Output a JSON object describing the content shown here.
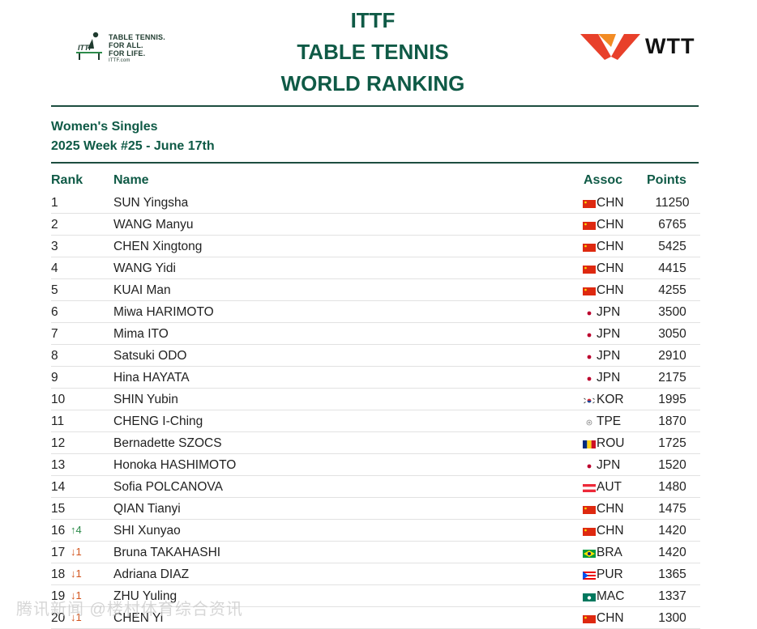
{
  "header": {
    "ittf_logo": {
      "icon": "ittf-table-tennis-logo-icon",
      "line1": "TABLE TENNIS.",
      "line2": "FOR ALL.",
      "line3": "FOR LIFE.",
      "line4": "ITTF.com"
    },
    "title_line1": "ITTF",
    "title_line2": "TABLE TENNIS",
    "title_line3": "WORLD RANKING",
    "wtt_logo": {
      "icon": "wtt-logo-icon",
      "text": "WTT"
    }
  },
  "ranking": {
    "category": "Women's Singles",
    "week": "2025 Week #25 - June 17th",
    "columns": {
      "rank": "Rank",
      "name": "Name",
      "assoc": "Assoc",
      "points": "Points"
    },
    "rows": [
      {
        "rank": "1",
        "change": "",
        "name": "SUN Yingsha",
        "flag": "chn-flag-icon",
        "assoc": "CHN",
        "points": "11250"
      },
      {
        "rank": "2",
        "change": "",
        "name": "WANG Manyu",
        "flag": "chn-flag-icon",
        "assoc": "CHN",
        "points": "6765"
      },
      {
        "rank": "3",
        "change": "",
        "name": "CHEN Xingtong",
        "flag": "chn-flag-icon",
        "assoc": "CHN",
        "points": "5425"
      },
      {
        "rank": "4",
        "change": "",
        "name": "WANG Yidi",
        "flag": "chn-flag-icon",
        "assoc": "CHN",
        "points": "4415"
      },
      {
        "rank": "5",
        "change": "",
        "name": "KUAI Man",
        "flag": "chn-flag-icon",
        "assoc": "CHN",
        "points": "4255"
      },
      {
        "rank": "6",
        "change": "",
        "name": "Miwa HARIMOTO",
        "flag": "jpn-flag-icon",
        "assoc": "JPN",
        "points": "3500"
      },
      {
        "rank": "7",
        "change": "",
        "name": "Mima ITO",
        "flag": "jpn-flag-icon",
        "assoc": "JPN",
        "points": "3050"
      },
      {
        "rank": "8",
        "change": "",
        "name": "Satsuki ODO",
        "flag": "jpn-flag-icon",
        "assoc": "JPN",
        "points": "2910"
      },
      {
        "rank": "9",
        "change": "",
        "name": "Hina HAYATA",
        "flag": "jpn-flag-icon",
        "assoc": "JPN",
        "points": "2175"
      },
      {
        "rank": "10",
        "change": "",
        "name": "SHIN Yubin",
        "flag": "kor-flag-icon",
        "assoc": "KOR",
        "points": "1995"
      },
      {
        "rank": "11",
        "change": "",
        "name": "CHENG I-Ching",
        "flag": "tpe-flag-icon",
        "assoc": "TPE",
        "points": "1870"
      },
      {
        "rank": "12",
        "change": "",
        "name": "Bernadette SZOCS",
        "flag": "rou-flag-icon",
        "assoc": "ROU",
        "points": "1725"
      },
      {
        "rank": "13",
        "change": "",
        "name": "Honoka HASHIMOTO",
        "flag": "jpn-flag-icon",
        "assoc": "JPN",
        "points": "1520"
      },
      {
        "rank": "14",
        "change": "",
        "name": "Sofia POLCANOVA",
        "flag": "aut-flag-icon",
        "assoc": "AUT",
        "points": "1480"
      },
      {
        "rank": "15",
        "change": "",
        "name": "QIAN Tianyi",
        "flag": "chn-flag-icon",
        "assoc": "CHN",
        "points": "1475"
      },
      {
        "rank": "16",
        "change": "↑4",
        "dir": "up",
        "name": "SHI Xunyao",
        "flag": "chn-flag-icon",
        "assoc": "CHN",
        "points": "1420"
      },
      {
        "rank": "17",
        "change": "↓1",
        "dir": "down",
        "name": "Bruna TAKAHASHI",
        "flag": "bra-flag-icon",
        "assoc": "BRA",
        "points": "1420"
      },
      {
        "rank": "18",
        "change": "↓1",
        "dir": "down",
        "name": "Adriana DIAZ",
        "flag": "pur-flag-icon",
        "assoc": "PUR",
        "points": "1365"
      },
      {
        "rank": "19",
        "change": "↓1",
        "dir": "down",
        "name": "ZHU Yuling",
        "flag": "mac-flag-icon",
        "assoc": "MAC",
        "points": "1337"
      },
      {
        "rank": "20",
        "change": "↓1",
        "dir": "down",
        "name": "CHEN Yi",
        "flag": "chn-flag-icon",
        "assoc": "CHN",
        "points": "1300"
      }
    ]
  },
  "watermark": "腾讯新闻 @楼村体育综合资讯",
  "colors": {
    "heading": "#0f5a46",
    "up": "#2c8a4a",
    "down": "#d2541d",
    "wtt_red": "#e8402a",
    "wtt_orange": "#f28b24"
  }
}
